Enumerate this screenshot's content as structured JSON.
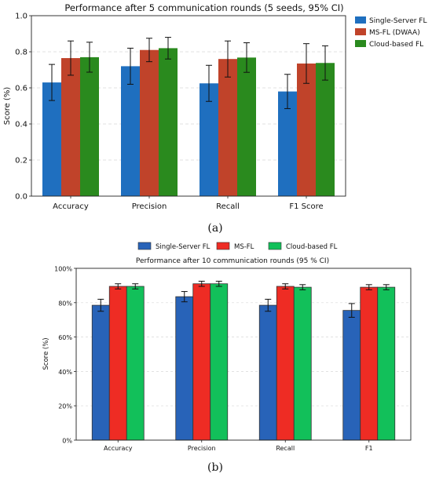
{
  "chart_data": [
    {
      "type": "bar",
      "panel_caption": "(a)",
      "title": "Performance after 5 communication rounds (5 seeds, 95% CI)",
      "ylabel": "Score (%)",
      "xlabel": "",
      "categories": [
        "Accuracy",
        "Precision",
        "Recall",
        "F1 Score"
      ],
      "ylim": [
        0,
        1.0
      ],
      "yticks": [
        "0.0",
        "0.2",
        "0.4",
        "0.6",
        "0.8",
        "1.0"
      ],
      "grid": true,
      "legend_position": "right",
      "series": [
        {
          "name": "Single-Server FL",
          "color": "#1f6fbf",
          "values": [
            0.63,
            0.72,
            0.625,
            0.58
          ],
          "err": [
            0.1,
            0.1,
            0.1,
            0.095
          ]
        },
        {
          "name": "MS-FL (DWAA)",
          "color": "#c0432a",
          "values": [
            0.765,
            0.81,
            0.76,
            0.735
          ],
          "err": [
            0.095,
            0.065,
            0.1,
            0.11
          ]
        },
        {
          "name": "Cloud-based FL",
          "color": "#2a8a1e",
          "values": [
            0.77,
            0.82,
            0.768,
            0.738
          ],
          "err": [
            0.083,
            0.06,
            0.082,
            0.095
          ]
        }
      ]
    },
    {
      "type": "bar",
      "panel_caption": "(b)",
      "title": "Performance after 10 communication rounds (95 % CI)",
      "ylabel": "Score (%)",
      "xlabel": "",
      "categories": [
        "Accuracy",
        "Precision",
        "Recall",
        "F1"
      ],
      "ylim": [
        0,
        100
      ],
      "yticks": [
        "0%",
        "20%",
        "40%",
        "60%",
        "80%",
        "100%"
      ],
      "grid": true,
      "legend_position": "top",
      "series": [
        {
          "name": "Single-Server FL",
          "color": "#2863b8",
          "values": [
            78.5,
            83.5,
            78.5,
            75.5
          ],
          "err": [
            3.5,
            3.0,
            3.5,
            4.0
          ]
        },
        {
          "name": "MS-FL",
          "color": "#ee2c24",
          "values": [
            89.5,
            91.0,
            89.5,
            89.0
          ],
          "err": [
            1.5,
            1.5,
            1.5,
            1.5
          ]
        },
        {
          "name": "Cloud-based FL",
          "color": "#12c05a",
          "values": [
            89.5,
            91.0,
            89.0,
            89.0
          ],
          "err": [
            1.5,
            1.5,
            1.5,
            1.5
          ]
        }
      ]
    }
  ]
}
